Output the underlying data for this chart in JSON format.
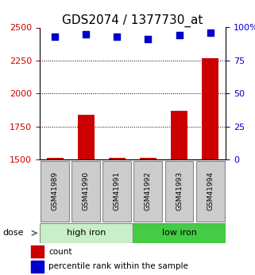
{
  "title": "GDS2074 / 1377730_at",
  "samples": [
    "GSM41989",
    "GSM41990",
    "GSM41991",
    "GSM41992",
    "GSM41993",
    "GSM41994"
  ],
  "counts": [
    1510,
    1840,
    1510,
    1510,
    1870,
    2270
  ],
  "percentile_ranks": [
    93,
    95,
    93,
    91,
    94,
    96
  ],
  "groups": [
    "high iron",
    "high iron",
    "high iron",
    "low iron",
    "low iron",
    "low iron"
  ],
  "group_colors": {
    "high iron": "#c8f0c8",
    "low iron": "#44cc44"
  },
  "ylim_left": [
    1500,
    2500
  ],
  "ylim_right": [
    0,
    100
  ],
  "yticks_left": [
    1500,
    1750,
    2000,
    2250,
    2500
  ],
  "yticks_right": [
    0,
    25,
    50,
    75,
    100
  ],
  "bar_color": "#cc0000",
  "dot_color": "#0000cc",
  "left_tick_color": "#cc0000",
  "right_tick_color": "#0000cc",
  "title_fontsize": 11,
  "axis_fontsize": 8,
  "legend_fontsize": 7.5,
  "bar_width": 0.55,
  "dot_size": 40
}
